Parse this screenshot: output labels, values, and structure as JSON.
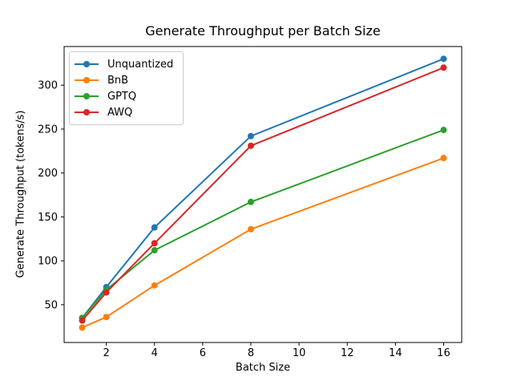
{
  "figure": {
    "background": "#ffffff",
    "axis_color": "#000000",
    "legend_border_color": "#cccccc"
  },
  "chart_data": {
    "type": "line",
    "title": "Generate Throughput per Batch Size",
    "xlabel": "Batch Size",
    "ylabel": "Generate Throughput (tokens/s)",
    "x": [
      1,
      2,
      4,
      8,
      16
    ],
    "series": [
      {
        "name": "Unquantized",
        "color": "#1f77b4",
        "values": [
          35,
          70,
          138,
          242,
          330
        ]
      },
      {
        "name": "BnB",
        "color": "#ff7f0e",
        "values": [
          24,
          36,
          72,
          136,
          217
        ]
      },
      {
        "name": "GPTQ",
        "color": "#2ca02c",
        "values": [
          35,
          67,
          112,
          167,
          249
        ]
      },
      {
        "name": "AWQ",
        "color": "#d62728",
        "values": [
          32,
          64,
          120,
          231,
          320
        ]
      }
    ],
    "x_ticks": [
      2,
      4,
      6,
      8,
      10,
      12,
      14,
      16
    ],
    "y_ticks": [
      50,
      100,
      150,
      200,
      250,
      300
    ],
    "xlim": [
      0.25,
      16.75
    ],
    "ylim": [
      7,
      344
    ],
    "grid": false,
    "legend_position": "upper left",
    "marker": "circle"
  }
}
